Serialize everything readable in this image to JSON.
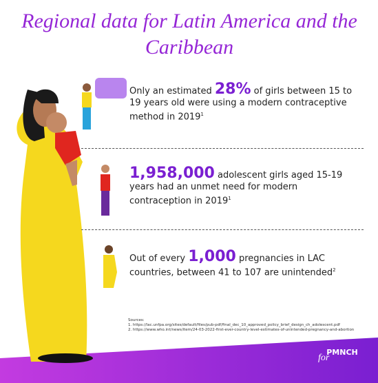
{
  "header": {
    "title": "Regional data for Latin America and the Caribbean"
  },
  "stats": [
    {
      "pre": "Only an estimated ",
      "highlight": "28%",
      "post": " of girls between 15 to 19 years old were using a modern contraceptive method in 2019",
      "sup": "1"
    },
    {
      "highlight": "1,958,000",
      "post": " adolescent girls aged 15-19 years had an unmet need for modern contraception in 2019",
      "sup": "1"
    },
    {
      "pre": "Out of every ",
      "highlight": "1,000",
      "post": " pregnancies in LAC countries, between 41 to 107 are unintended",
      "sup": "2"
    }
  ],
  "sources": {
    "heading": "Sources:",
    "items": [
      "1. https://lac.unfpa.org/sites/default/files/pub-pdf/final_dec_10_approved_policy_brief_design_ch_adolescent.pdf",
      "2. https://www.who.int/news/item/24-03-2022-first-ever-country-level-estimates-of-unintended-pregnancy-and-abortion"
    ]
  },
  "logo": {
    "for": "for",
    "name": "PMNCH"
  }
}
